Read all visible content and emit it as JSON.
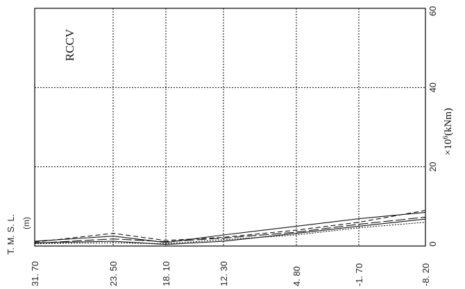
{
  "chart_data": {
    "type": "line",
    "title": "RCCV",
    "xlabel_main": "T. M. S. L.",
    "xlabel_unit": "(m)",
    "ylabel_prefix": "×10",
    "ylabel_exp": "6",
    "ylabel_unit": "(kNm)",
    "x_ticks": [
      "31. 70",
      "23. 50",
      "18. 10",
      "12. 30",
      "4. 80",
      "-1. 70",
      "-8. 20"
    ],
    "y_ticks": [
      "0",
      "20",
      "40",
      "60"
    ],
    "ylim": [
      0,
      60
    ],
    "grid": true,
    "series": [
      {
        "style": "solid",
        "values": [
          0.8,
          1.2,
          0.4,
          1.2,
          3.2,
          5.0,
          6.8
        ]
      },
      {
        "style": "solid",
        "values": [
          1.2,
          2.5,
          0.9,
          2.8,
          5.0,
          6.9,
          8.5
        ]
      },
      {
        "style": "dashed",
        "values": [
          1.0,
          3.2,
          1.4,
          2.2,
          4.0,
          6.0,
          9.0
        ]
      },
      {
        "style": "long-dash",
        "values": [
          0.7,
          1.8,
          1.1,
          2.0,
          3.5,
          5.5,
          7.3
        ]
      },
      {
        "style": "dotted",
        "values": [
          0.6,
          0.8,
          0.6,
          1.6,
          2.8,
          4.6,
          6.0
        ]
      }
    ]
  }
}
